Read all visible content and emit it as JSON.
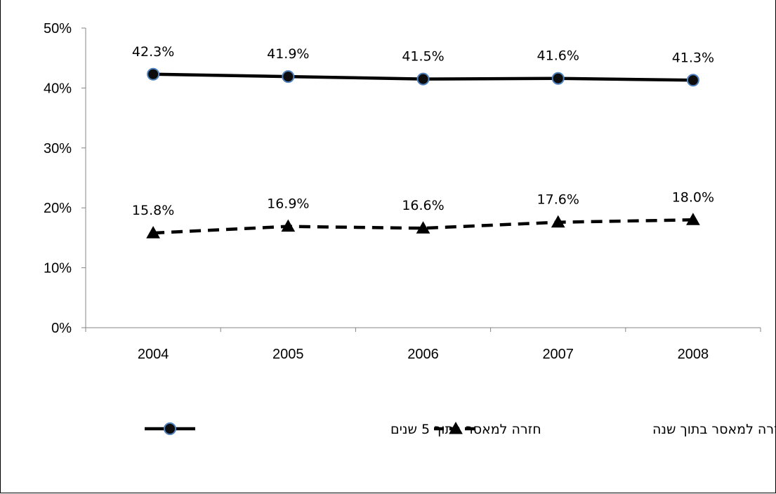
{
  "chart_data": {
    "type": "line",
    "categories": [
      "2004",
      "2005",
      "2006",
      "2007",
      "2008"
    ],
    "ylim": [
      0,
      50
    ],
    "yticks": [
      "0%",
      "10%",
      "20%",
      "30%",
      "40%",
      "50%"
    ],
    "grid": false,
    "legend": "bottom",
    "series": [
      {
        "name": "חזרה למאסר בתוך 5 שנים",
        "values": [
          42.3,
          41.9,
          41.5,
          41.6,
          41.3
        ],
        "labels": [
          "42.3%",
          "41.9%",
          "41.5%",
          "41.6%",
          "41.3%"
        ],
        "marker": "circle",
        "line_style": "solid",
        "line_color": "#000000",
        "marker_fill": "#0d0d0d",
        "marker_edge": "#4f81bd"
      },
      {
        "name": "חזרה למאסר בתוך שנה",
        "values": [
          15.8,
          16.9,
          16.6,
          17.6,
          18.0
        ],
        "labels": [
          "15.8%",
          "16.9%",
          "16.6%",
          "17.6%",
          "18.0%"
        ],
        "marker": "triangle",
        "line_style": "dashed",
        "line_color": "#000000",
        "marker_fill": "#000000",
        "marker_edge": "#000000"
      }
    ]
  }
}
